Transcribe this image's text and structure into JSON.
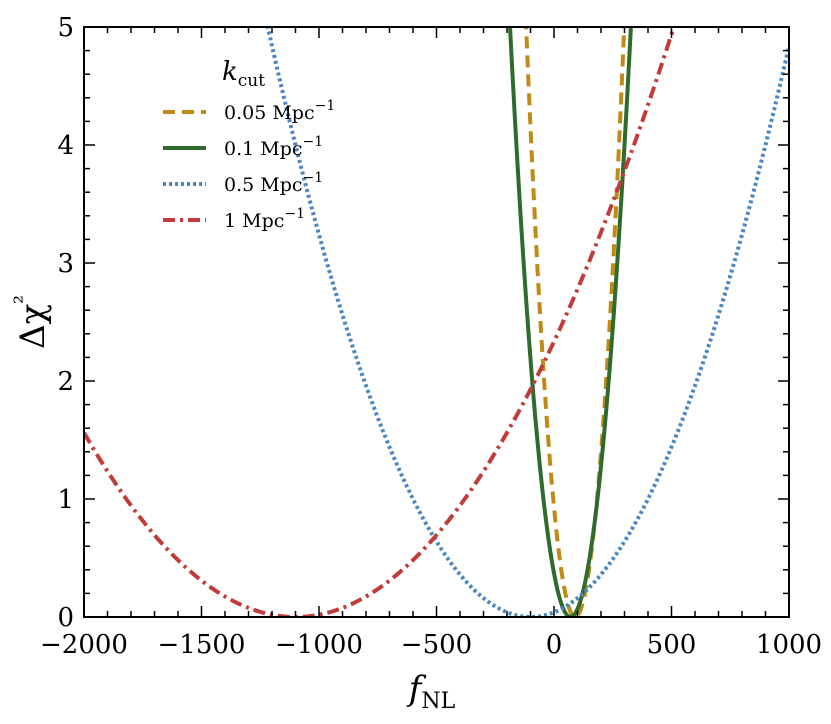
{
  "chart_data": {
    "type": "line",
    "title": "",
    "xlabel": "f_NL",
    "ylabel": "Δχ²",
    "xlim": [
      -2000,
      1000
    ],
    "ylim": [
      0,
      5
    ],
    "xticks": [
      -2000,
      -1500,
      -1000,
      -500,
      0,
      500,
      1000
    ],
    "xtick_labels": [
      "−2000",
      "−1500",
      "−1000",
      "−500",
      "0",
      "500",
      "1000"
    ],
    "yticks": [
      0,
      1,
      2,
      3,
      4,
      5
    ],
    "ytick_labels": [
      "0",
      "1",
      "2",
      "3",
      "4",
      "5"
    ],
    "grid": false,
    "legend_title": "k_cut",
    "legend_location": "upper-left",
    "series": [
      {
        "name": "0.05 Mpc⁻¹",
        "label_main": "0.05 Mpc",
        "label_sup": "−1",
        "color": "#c08a17",
        "style": "dashed",
        "center": 90,
        "sigma": 93.3
      },
      {
        "name": "0.1 Mpc⁻¹",
        "label_main": "0.1 Mpc",
        "label_sup": "−1",
        "color": "#2f6b2d",
        "style": "solid",
        "center": 70,
        "sigma": 115
      },
      {
        "name": "0.5 Mpc⁻¹",
        "label_main": "0.5 Mpc",
        "label_sup": "−1",
        "color": "#4a86c2",
        "style": "dotted",
        "center": -100,
        "sigma": 500
      },
      {
        "name": "1 Mpc⁻¹",
        "label_main": "1 Mpc",
        "label_sup": "−1",
        "color": "#c23b3b",
        "style": "dashdot",
        "center": -1100,
        "sigma": 720
      }
    ]
  }
}
